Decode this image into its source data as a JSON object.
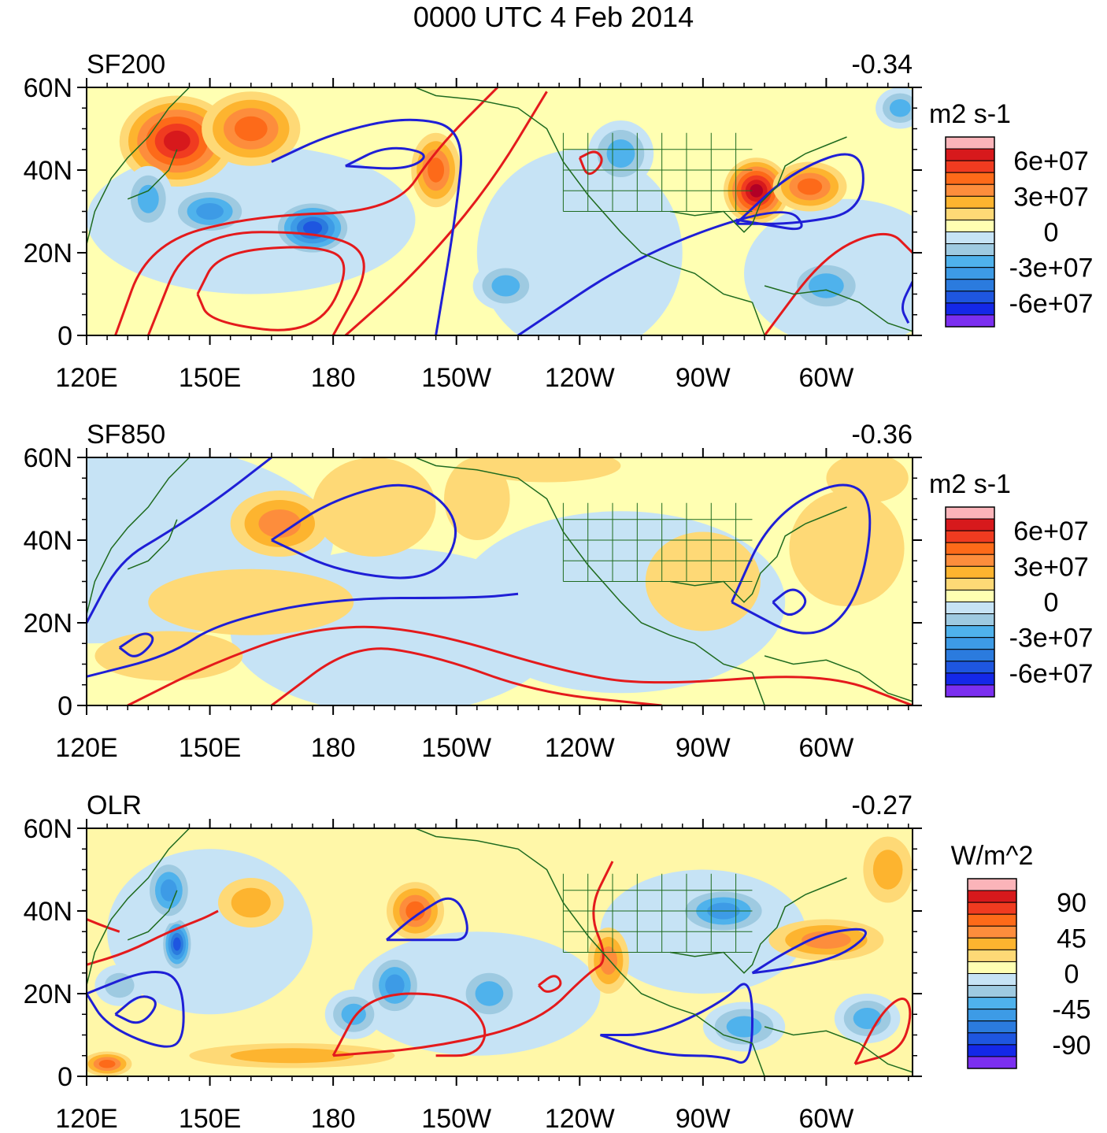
{
  "title": "0000 UTC 4 Feb 2014",
  "colors": {
    "red_contour": "#e41a1c",
    "blue_contour": "#1f1fd6",
    "coast": "#1f6b1f"
  },
  "chart_data": [
    {
      "type": "heatmap",
      "id": "sf200",
      "title": "SF200",
      "stat": "-0.34",
      "units": "m2 s-1",
      "xlabel": "",
      "ylabel": "",
      "xticks": [
        "120E",
        "150E",
        "180",
        "150W",
        "120W",
        "90W",
        "60W"
      ],
      "yticks": [
        "0",
        "20N",
        "40N",
        "60N"
      ],
      "xlim": [
        120,
        321
      ],
      "ylim": [
        0,
        60
      ],
      "colorbar_labels": [
        "6e+07",
        "3e+07",
        "0",
        "-3e+07",
        "-6e+07"
      ],
      "blobs": [
        {
          "lon": 142,
          "lat": 47,
          "rx": 14,
          "ry": 11,
          "v": 6
        },
        {
          "lon": 160,
          "lat": 50,
          "rx": 12,
          "ry": 9,
          "v": 4
        },
        {
          "lon": 175,
          "lat": 26,
          "rx": 10,
          "ry": 7,
          "v": -6
        },
        {
          "lon": 150,
          "lat": 30,
          "rx": 10,
          "ry": 6,
          "v": -4
        },
        {
          "lon": 135,
          "lat": 33,
          "rx": 6,
          "ry": 8,
          "v": -3
        },
        {
          "lon": 205,
          "lat": 40,
          "rx": 6,
          "ry": 9,
          "v": 4
        },
        {
          "lon": 222,
          "lat": 12,
          "rx": 8,
          "ry": 6,
          "v": -3
        },
        {
          "lon": 283,
          "lat": 35,
          "rx": 8,
          "ry": 8,
          "v": 7
        },
        {
          "lon": 296,
          "lat": 36,
          "rx": 9,
          "ry": 6,
          "v": 4
        },
        {
          "lon": 300,
          "lat": 12,
          "rx": 10,
          "ry": 7,
          "v": -3
        },
        {
          "lon": 250,
          "lat": 44,
          "rx": 8,
          "ry": 8,
          "v": -3
        },
        {
          "lon": 318,
          "lat": 55,
          "rx": 6,
          "ry": 5,
          "v": -3
        }
      ],
      "contours": [
        {
          "color": "red",
          "points": [
            [
              127,
              0
            ],
            [
              135,
              22
            ],
            [
              160,
              29
            ],
            [
              195,
              30
            ],
            [
              205,
              45
            ],
            [
              220,
              60
            ]
          ]
        },
        {
          "color": "red",
          "points": [
            [
              135,
              0
            ],
            [
              145,
              25
            ],
            [
              180,
              25
            ],
            [
              190,
              18
            ],
            [
              180,
              0
            ]
          ]
        },
        {
          "color": "red",
          "points": [
            [
              147,
              10
            ],
            [
              152,
              20
            ],
            [
              175,
              22
            ],
            [
              185,
              18
            ],
            [
              176,
              0
            ],
            [
              150,
              3
            ],
            [
              147,
              10
            ]
          ]
        },
        {
          "color": "red",
          "points": [
            [
              183,
              0
            ],
            [
              200,
              15
            ],
            [
              218,
              36
            ],
            [
              232,
              59
            ]
          ]
        },
        {
          "color": "red",
          "points": [
            [
              240,
              43
            ],
            [
              244,
              45
            ],
            [
              246,
              42
            ],
            [
              242,
              38
            ],
            [
              240,
              43
            ]
          ]
        },
        {
          "color": "red",
          "points": [
            [
              285,
              0
            ],
            [
              300,
              20
            ],
            [
              315,
              26
            ],
            [
              321,
              20
            ]
          ]
        },
        {
          "color": "blue",
          "points": [
            [
              165,
              42
            ],
            [
              180,
              49
            ],
            [
              198,
              53
            ],
            [
              212,
              50
            ],
            [
              210,
              30
            ],
            [
              205,
              0
            ]
          ]
        },
        {
          "color": "blue",
          "points": [
            [
              183,
              41
            ],
            [
              193,
              46
            ],
            [
              204,
              44
            ],
            [
              198,
              40
            ],
            [
              183,
              41
            ]
          ]
        },
        {
          "color": "blue",
          "points": [
            [
              225,
              0
            ],
            [
              255,
              20
            ],
            [
              290,
              32
            ],
            [
              296,
              25
            ],
            [
              284,
              27
            ],
            [
              278,
              28
            ]
          ]
        },
        {
          "color": "blue",
          "points": [
            [
              278,
              27
            ],
            [
              292,
              40
            ],
            [
              309,
              46
            ],
            [
              309,
              30
            ],
            [
              293,
              27
            ],
            [
              278,
              27
            ]
          ]
        },
        {
          "color": "blue",
          "points": [
            [
              321,
              13
            ],
            [
              318,
              7
            ],
            [
              320,
              3
            ]
          ]
        }
      ]
    },
    {
      "type": "heatmap",
      "id": "sf850",
      "title": "SF850",
      "stat": "-0.36",
      "units": "m2 s-1",
      "xlabel": "",
      "ylabel": "",
      "xticks": [
        "120E",
        "150E",
        "180",
        "150W",
        "120W",
        "90W",
        "60W"
      ],
      "yticks": [
        "0",
        "20N",
        "40N",
        "60N"
      ],
      "xlim": [
        120,
        321
      ],
      "ylim": [
        0,
        60
      ],
      "colorbar_labels": [
        "6e+07",
        "3e+07",
        "0",
        "-3e+07",
        "-6e+07"
      ],
      "blobs": [
        {
          "lon": 167,
          "lat": 44,
          "rx": 12,
          "ry": 8,
          "v": 3
        },
        {
          "lon": 190,
          "lat": 48,
          "rx": 15,
          "ry": 12,
          "v": 1
        },
        {
          "lon": 215,
          "lat": 50,
          "rx": 8,
          "ry": 10,
          "v": 1
        },
        {
          "lon": 160,
          "lat": 25,
          "rx": 25,
          "ry": 8,
          "v": 1
        },
        {
          "lon": 140,
          "lat": 12,
          "rx": 18,
          "ry": 6,
          "v": 1
        },
        {
          "lon": 270,
          "lat": 30,
          "rx": 14,
          "ry": 12,
          "v": 1
        },
        {
          "lon": 305,
          "lat": 38,
          "rx": 14,
          "ry": 14,
          "v": 1
        },
        {
          "lon": 310,
          "lat": 55,
          "rx": 10,
          "ry": 6,
          "v": 1
        },
        {
          "lon": 232,
          "lat": 58,
          "rx": 18,
          "ry": 4,
          "v": 1
        }
      ],
      "contours": [
        {
          "color": "blue",
          "points": [
            [
              120,
              20
            ],
            [
              128,
              35
            ],
            [
              140,
              42
            ],
            [
              152,
              50
            ],
            [
              165,
              60
            ]
          ]
        },
        {
          "color": "blue",
          "points": [
            [
              165,
              40
            ],
            [
              180,
              50
            ],
            [
              200,
              55
            ],
            [
              212,
              44
            ],
            [
              205,
              30
            ],
            [
              182,
              32
            ],
            [
              165,
              40
            ]
          ]
        },
        {
          "color": "blue",
          "points": [
            [
              120,
              7
            ],
            [
              140,
              12
            ],
            [
              152,
              20
            ],
            [
              180,
              26
            ],
            [
              215,
              26
            ],
            [
              225,
              27
            ]
          ]
        },
        {
          "color": "blue",
          "points": [
            [
              128,
              14
            ],
            [
              134,
              18
            ],
            [
              137,
              16
            ],
            [
              132,
              11
            ],
            [
              128,
              14
            ]
          ]
        },
        {
          "color": "blue",
          "points": [
            [
              277,
              25
            ],
            [
              286,
              45
            ],
            [
              303,
              55
            ],
            [
              312,
              50
            ],
            [
              308,
              25
            ],
            [
              296,
              15
            ],
            [
              277,
              25
            ]
          ]
        },
        {
          "color": "blue",
          "points": [
            [
              287,
              25
            ],
            [
              292,
              29
            ],
            [
              296,
              25
            ],
            [
              291,
              21
            ],
            [
              287,
              25
            ]
          ]
        },
        {
          "color": "red",
          "points": [
            [
              130,
              0
            ],
            [
              150,
              10
            ],
            [
              175,
              19
            ],
            [
              200,
              19
            ],
            [
              240,
              7
            ],
            [
              260,
              5
            ],
            [
              300,
              8
            ],
            [
              321,
              0
            ]
          ]
        },
        {
          "color": "red",
          "points": [
            [
              165,
              0
            ],
            [
              185,
              15
            ],
            [
              205,
              12
            ],
            [
              230,
              3
            ],
            [
              260,
              0
            ]
          ]
        }
      ]
    },
    {
      "type": "heatmap",
      "id": "olr",
      "title": "OLR",
      "stat": "-0.27",
      "units": "W/m^2",
      "xlabel": "",
      "ylabel": "",
      "xticks": [
        "120E",
        "150E",
        "180",
        "150W",
        "120W",
        "90W",
        "60W"
      ],
      "yticks": [
        "0",
        "20N",
        "40N",
        "60N"
      ],
      "xlim": [
        120,
        321
      ],
      "ylim": [
        0,
        60
      ],
      "colorbar_labels": [
        "90",
        "45",
        "0",
        "-45",
        "-90"
      ],
      "blobs": [
        {
          "lon": 142,
          "lat": 32,
          "rx": 4,
          "ry": 7,
          "v": -6
        },
        {
          "lon": 140,
          "lat": 45,
          "rx": 6,
          "ry": 8,
          "v": -4
        },
        {
          "lon": 200,
          "lat": 40,
          "rx": 7,
          "ry": 7,
          "v": 4
        },
        {
          "lon": 195,
          "lat": 22,
          "rx": 7,
          "ry": 8,
          "v": -4
        },
        {
          "lon": 185,
          "lat": 15,
          "rx": 7,
          "ry": 6,
          "v": -3
        },
        {
          "lon": 218,
          "lat": 20,
          "rx": 8,
          "ry": 7,
          "v": -3
        },
        {
          "lon": 247,
          "lat": 28,
          "rx": 5,
          "ry": 8,
          "v": 3
        },
        {
          "lon": 275,
          "lat": 40,
          "rx": 12,
          "ry": 6,
          "v": -4
        },
        {
          "lon": 300,
          "lat": 33,
          "rx": 14,
          "ry": 5,
          "v": 3
        },
        {
          "lon": 280,
          "lat": 12,
          "rx": 10,
          "ry": 6,
          "v": -3
        },
        {
          "lon": 310,
          "lat": 14,
          "rx": 8,
          "ry": 6,
          "v": -3
        },
        {
          "lon": 125,
          "lat": 3,
          "rx": 6,
          "ry": 3,
          "v": 4
        },
        {
          "lon": 170,
          "lat": 5,
          "rx": 25,
          "ry": 3,
          "v": 2
        },
        {
          "lon": 160,
          "lat": 42,
          "rx": 8,
          "ry": 6,
          "v": 2
        },
        {
          "lon": 315,
          "lat": 50,
          "rx": 6,
          "ry": 8,
          "v": 2
        },
        {
          "lon": 128,
          "lat": 22,
          "rx": 6,
          "ry": 5,
          "v": -2
        }
      ],
      "contours": [
        {
          "color": "red",
          "points": [
            [
              120,
              27
            ],
            [
              130,
              30
            ],
            [
              140,
              35
            ],
            [
              148,
              38
            ],
            [
              152,
              40
            ]
          ]
        },
        {
          "color": "red",
          "points": [
            [
              120,
              38
            ],
            [
              125,
              36
            ],
            [
              128,
              35
            ]
          ]
        },
        {
          "color": "red",
          "points": [
            [
              180,
              5
            ],
            [
              205,
              7
            ],
            [
              230,
              13
            ],
            [
              242,
              25
            ],
            [
              247,
              28
            ],
            [
              242,
              40
            ],
            [
              248,
              52
            ]
          ]
        },
        {
          "color": "red",
          "points": [
            [
              180,
              5
            ],
            [
              188,
              20
            ],
            [
              210,
              20
            ],
            [
              218,
              12
            ],
            [
              215,
              5
            ],
            [
              205,
              5
            ]
          ]
        },
        {
          "color": "red",
          "points": [
            [
              307,
              3
            ],
            [
              313,
              15
            ],
            [
              319,
              20
            ],
            [
              321,
              15
            ],
            [
              318,
              6
            ],
            [
              307,
              3
            ]
          ]
        },
        {
          "color": "red",
          "points": [
            [
              230,
              22
            ],
            [
              234,
              25
            ],
            [
              236,
              22
            ],
            [
              232,
              20
            ],
            [
              230,
              22
            ]
          ]
        },
        {
          "color": "blue",
          "points": [
            [
              120,
              20
            ],
            [
              135,
              26
            ],
            [
              143,
              24
            ],
            [
              144,
              10
            ],
            [
              140,
              6
            ],
            [
              125,
              12
            ],
            [
              120,
              20
            ]
          ]
        },
        {
          "color": "blue",
          "points": [
            [
              127,
              15
            ],
            [
              133,
              20
            ],
            [
              138,
              18
            ],
            [
              133,
              12
            ],
            [
              127,
              15
            ]
          ]
        },
        {
          "color": "blue",
          "points": [
            [
              193,
              33
            ],
            [
              200,
              39
            ],
            [
              210,
              45
            ],
            [
              214,
              33
            ],
            [
              205,
              33
            ],
            [
              193,
              33
            ]
          ]
        },
        {
          "color": "blue",
          "points": [
            [
              245,
              10
            ],
            [
              258,
              10
            ],
            [
              275,
              18
            ],
            [
              282,
              25
            ],
            [
              282,
              2
            ],
            [
              275,
              5
            ],
            [
              260,
              5
            ],
            [
              245,
              10
            ]
          ]
        },
        {
          "color": "blue",
          "points": [
            [
              282,
              25
            ],
            [
              290,
              30
            ],
            [
              300,
              35
            ],
            [
              312,
              36
            ],
            [
              304,
              29
            ],
            [
              290,
              26
            ],
            [
              282,
              25
            ]
          ]
        }
      ]
    }
  ]
}
